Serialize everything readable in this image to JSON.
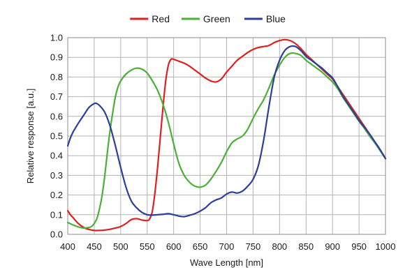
{
  "chart_data": {
    "type": "line",
    "title": "",
    "xlabel": "Wave Length [nm]",
    "ylabel": "Relative response [a.u.]",
    "xlim": [
      400,
      1000
    ],
    "ylim": [
      0,
      1.0
    ],
    "xticks": [
      400,
      450,
      500,
      550,
      600,
      650,
      700,
      750,
      800,
      850,
      900,
      950,
      1000
    ],
    "yticks": [
      0.0,
      0.1,
      0.2,
      0.3,
      0.4,
      0.5,
      0.6,
      0.7,
      0.8,
      0.9,
      1.0
    ],
    "ytick_labels": [
      "0.0",
      "0.1",
      "0.2",
      "0.3",
      "0.4",
      "0.5",
      "0.6",
      "0.7",
      "0.8",
      "0.9",
      "1.0"
    ],
    "grid": true,
    "legend": "top-center",
    "series": [
      {
        "name": "Red",
        "color": "#e02020",
        "points": [
          [
            400,
            0.12
          ],
          [
            405,
            0.1
          ],
          [
            410,
            0.085
          ],
          [
            420,
            0.055
          ],
          [
            430,
            0.035
          ],
          [
            440,
            0.025
          ],
          [
            450,
            0.02
          ],
          [
            460,
            0.02
          ],
          [
            470,
            0.022
          ],
          [
            480,
            0.026
          ],
          [
            490,
            0.032
          ],
          [
            500,
            0.04
          ],
          [
            510,
            0.055
          ],
          [
            520,
            0.075
          ],
          [
            530,
            0.08
          ],
          [
            540,
            0.073
          ],
          [
            550,
            0.07
          ],
          [
            555,
            0.08
          ],
          [
            560,
            0.12
          ],
          [
            565,
            0.22
          ],
          [
            570,
            0.35
          ],
          [
            575,
            0.5
          ],
          [
            580,
            0.65
          ],
          [
            585,
            0.78
          ],
          [
            590,
            0.86
          ],
          [
            595,
            0.89
          ],
          [
            600,
            0.89
          ],
          [
            610,
            0.88
          ],
          [
            620,
            0.87
          ],
          [
            630,
            0.855
          ],
          [
            640,
            0.835
          ],
          [
            650,
            0.815
          ],
          [
            660,
            0.795
          ],
          [
            670,
            0.78
          ],
          [
            680,
            0.775
          ],
          [
            690,
            0.79
          ],
          [
            700,
            0.825
          ],
          [
            710,
            0.855
          ],
          [
            720,
            0.885
          ],
          [
            730,
            0.905
          ],
          [
            740,
            0.925
          ],
          [
            750,
            0.94
          ],
          [
            760,
            0.95
          ],
          [
            770,
            0.955
          ],
          [
            780,
            0.96
          ],
          [
            790,
            0.975
          ],
          [
            800,
            0.985
          ],
          [
            810,
            0.99
          ],
          [
            820,
            0.985
          ],
          [
            830,
            0.97
          ],
          [
            840,
            0.945
          ],
          [
            850,
            0.915
          ],
          [
            860,
            0.89
          ],
          [
            870,
            0.865
          ],
          [
            880,
            0.84
          ],
          [
            890,
            0.815
          ],
          [
            900,
            0.79
          ],
          [
            910,
            0.75
          ],
          [
            920,
            0.71
          ],
          [
            930,
            0.67
          ],
          [
            940,
            0.63
          ],
          [
            950,
            0.59
          ],
          [
            960,
            0.55
          ],
          [
            970,
            0.51
          ],
          [
            980,
            0.47
          ],
          [
            990,
            0.43
          ],
          [
            1000,
            0.385
          ]
        ]
      },
      {
        "name": "Green",
        "color": "#4caf37",
        "points": [
          [
            400,
            0.06
          ],
          [
            410,
            0.048
          ],
          [
            420,
            0.038
          ],
          [
            430,
            0.032
          ],
          [
            440,
            0.035
          ],
          [
            445,
            0.04
          ],
          [
            450,
            0.055
          ],
          [
            455,
            0.08
          ],
          [
            460,
            0.13
          ],
          [
            465,
            0.2
          ],
          [
            470,
            0.3
          ],
          [
            475,
            0.42
          ],
          [
            480,
            0.53
          ],
          [
            485,
            0.62
          ],
          [
            490,
            0.7
          ],
          [
            495,
            0.75
          ],
          [
            500,
            0.78
          ],
          [
            510,
            0.815
          ],
          [
            520,
            0.835
          ],
          [
            530,
            0.845
          ],
          [
            540,
            0.84
          ],
          [
            550,
            0.82
          ],
          [
            560,
            0.78
          ],
          [
            570,
            0.73
          ],
          [
            580,
            0.66
          ],
          [
            590,
            0.57
          ],
          [
            600,
            0.46
          ],
          [
            610,
            0.36
          ],
          [
            620,
            0.3
          ],
          [
            630,
            0.265
          ],
          [
            640,
            0.245
          ],
          [
            650,
            0.24
          ],
          [
            660,
            0.25
          ],
          [
            670,
            0.28
          ],
          [
            680,
            0.32
          ],
          [
            690,
            0.365
          ],
          [
            700,
            0.42
          ],
          [
            710,
            0.465
          ],
          [
            720,
            0.485
          ],
          [
            730,
            0.5
          ],
          [
            740,
            0.535
          ],
          [
            750,
            0.59
          ],
          [
            760,
            0.64
          ],
          [
            770,
            0.685
          ],
          [
            780,
            0.745
          ],
          [
            790,
            0.81
          ],
          [
            800,
            0.86
          ],
          [
            810,
            0.9
          ],
          [
            820,
            0.92
          ],
          [
            830,
            0.92
          ],
          [
            840,
            0.91
          ],
          [
            850,
            0.885
          ],
          [
            860,
            0.865
          ],
          [
            870,
            0.845
          ],
          [
            880,
            0.825
          ],
          [
            890,
            0.8
          ],
          [
            900,
            0.775
          ],
          [
            910,
            0.74
          ],
          [
            920,
            0.695
          ],
          [
            930,
            0.655
          ],
          [
            940,
            0.615
          ],
          [
            950,
            0.575
          ],
          [
            960,
            0.54
          ],
          [
            970,
            0.5
          ],
          [
            980,
            0.465
          ],
          [
            990,
            0.425
          ],
          [
            1000,
            0.385
          ]
        ]
      },
      {
        "name": "Blue",
        "color": "#2a3f9b",
        "points": [
          [
            400,
            0.45
          ],
          [
            405,
            0.49
          ],
          [
            410,
            0.52
          ],
          [
            420,
            0.565
          ],
          [
            430,
            0.605
          ],
          [
            440,
            0.645
          ],
          [
            450,
            0.665
          ],
          [
            455,
            0.665
          ],
          [
            460,
            0.655
          ],
          [
            470,
            0.62
          ],
          [
            480,
            0.55
          ],
          [
            490,
            0.45
          ],
          [
            500,
            0.34
          ],
          [
            510,
            0.24
          ],
          [
            520,
            0.17
          ],
          [
            530,
            0.135
          ],
          [
            540,
            0.112
          ],
          [
            550,
            0.1
          ],
          [
            560,
            0.098
          ],
          [
            570,
            0.1
          ],
          [
            580,
            0.102
          ],
          [
            590,
            0.105
          ],
          [
            600,
            0.1
          ],
          [
            610,
            0.093
          ],
          [
            620,
            0.09
          ],
          [
            630,
            0.097
          ],
          [
            640,
            0.105
          ],
          [
            650,
            0.118
          ],
          [
            660,
            0.135
          ],
          [
            670,
            0.16
          ],
          [
            680,
            0.175
          ],
          [
            690,
            0.185
          ],
          [
            700,
            0.205
          ],
          [
            710,
            0.215
          ],
          [
            720,
            0.21
          ],
          [
            730,
            0.22
          ],
          [
            740,
            0.245
          ],
          [
            750,
            0.28
          ],
          [
            760,
            0.35
          ],
          [
            770,
            0.48
          ],
          [
            780,
            0.65
          ],
          [
            790,
            0.8
          ],
          [
            800,
            0.885
          ],
          [
            810,
            0.935
          ],
          [
            820,
            0.955
          ],
          [
            830,
            0.955
          ],
          [
            840,
            0.935
          ],
          [
            850,
            0.905
          ],
          [
            860,
            0.885
          ],
          [
            870,
            0.865
          ],
          [
            880,
            0.845
          ],
          [
            890,
            0.82
          ],
          [
            900,
            0.795
          ],
          [
            910,
            0.75
          ],
          [
            920,
            0.7
          ],
          [
            930,
            0.66
          ],
          [
            940,
            0.62
          ],
          [
            950,
            0.58
          ],
          [
            960,
            0.545
          ],
          [
            970,
            0.51
          ],
          [
            980,
            0.47
          ],
          [
            990,
            0.43
          ],
          [
            1000,
            0.385
          ]
        ]
      }
    ]
  }
}
